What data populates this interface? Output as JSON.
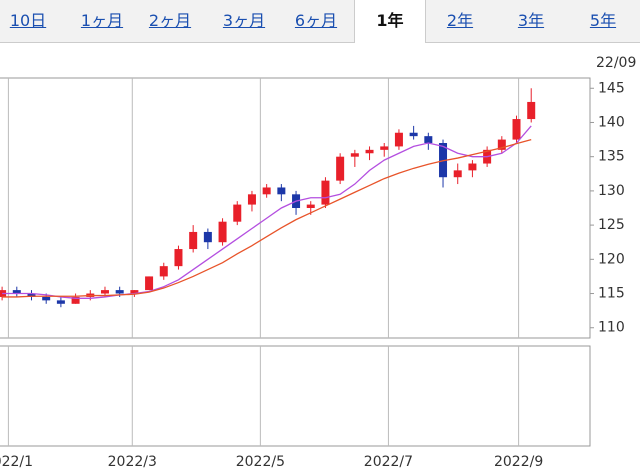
{
  "tabs": [
    "10日",
    "1ヶ月",
    "2ヶ月",
    "3ヶ月",
    "6ヶ月",
    "1年",
    "2年",
    "3年",
    "5年"
  ],
  "chart_data": {
    "type": "candlestick",
    "date_label": "22/09",
    "x": [
      -3,
      4,
      11,
      18,
      25,
      32,
      39,
      46,
      53,
      60,
      67,
      74,
      81,
      88,
      95,
      102,
      109,
      116,
      123,
      130,
      137,
      144,
      151,
      158,
      165,
      172,
      179,
      186,
      193,
      200,
      207,
      214,
      221,
      228,
      235,
      242,
      249
    ],
    "open": [
      114.5,
      115.5,
      115,
      114.5,
      114,
      113.5,
      114.5,
      115,
      115.5,
      115,
      115.5,
      117.5,
      119,
      121.5,
      124,
      122.5,
      125.5,
      128,
      129.5,
      130.5,
      129.5,
      127.5,
      128,
      131.5,
      135,
      135.5,
      136,
      136.5,
      138.5,
      138,
      137,
      132,
      133,
      134,
      136,
      137.5,
      140.5
    ],
    "high": [
      116,
      116,
      115.5,
      115,
      114.5,
      115,
      115.5,
      116,
      116,
      115.5,
      117.5,
      119.5,
      122,
      125,
      124.5,
      126,
      128.5,
      130,
      131,
      131,
      130,
      128.5,
      132,
      135.5,
      136,
      136.5,
      137,
      139,
      139.5,
      138.5,
      137.5,
      134,
      134.5,
      136.5,
      138,
      141,
      145
    ],
    "low": [
      114,
      114.5,
      114,
      113.5,
      113,
      113.5,
      114,
      114.5,
      114.5,
      114.5,
      115.5,
      117,
      118.5,
      121,
      121.5,
      122,
      125,
      127,
      129,
      128.5,
      126.5,
      126.5,
      127.5,
      131,
      133.5,
      134.5,
      135,
      136,
      137.5,
      136,
      130.5,
      131,
      132,
      133.5,
      135.5,
      137,
      140
    ],
    "close": [
      115.5,
      115,
      114.5,
      114,
      113.5,
      114.5,
      115,
      115.5,
      115,
      115.5,
      117.5,
      119,
      121.5,
      124,
      122.5,
      125.5,
      128,
      129.5,
      130.5,
      129.5,
      127.5,
      128,
      131.5,
      135,
      135.5,
      136,
      136.5,
      138.5,
      138,
      137,
      132,
      133,
      134,
      136,
      137.5,
      140.5,
      143
    ],
    "up_color": "#e8202a",
    "down_color": "#1c37a8",
    "series": [
      {
        "color": "#b44fe0",
        "values": [
          115,
          115,
          115,
          114.8,
          114.5,
          114.3,
          114.3,
          114.5,
          114.8,
          115,
          115.3,
          116,
          117,
          118.5,
          120,
          121.5,
          123,
          124.5,
          126,
          127.5,
          128.5,
          129,
          129,
          129.5,
          131,
          133,
          134.5,
          135.5,
          136.5,
          137,
          136.5,
          135.5,
          135,
          135,
          135.5,
          137,
          139.5
        ]
      },
      {
        "color": "#e8542a",
        "values": [
          114.5,
          114.5,
          114.6,
          114.6,
          114.6,
          114.6,
          114.7,
          114.7,
          114.8,
          114.9,
          115.2,
          115.8,
          116.6,
          117.5,
          118.5,
          119.5,
          120.8,
          122,
          123.3,
          124.6,
          125.8,
          126.8,
          127.8,
          128.8,
          129.8,
          130.8,
          131.8,
          132.6,
          133.3,
          133.9,
          134.4,
          134.8,
          135.3,
          135.8,
          136.3,
          136.9,
          137.5
        ]
      }
    ],
    "xlim": [
      -4,
      277
    ],
    "xticks": [
      {
        "value": 0,
        "label": "2022/1"
      },
      {
        "value": 59,
        "label": "2022/3"
      },
      {
        "value": 120,
        "label": "2022/5"
      },
      {
        "value": 181,
        "label": "2022/7"
      },
      {
        "value": 243,
        "label": "2022/9"
      }
    ],
    "ylim": [
      108.5,
      146.5
    ],
    "yticks": [
      110,
      115,
      120,
      125,
      130,
      135,
      140,
      145
    ]
  }
}
